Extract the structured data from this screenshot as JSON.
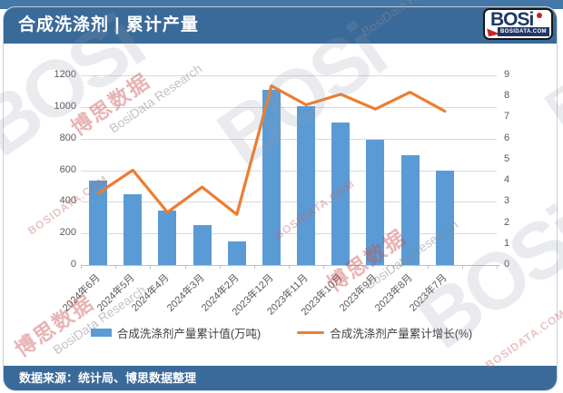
{
  "header": {
    "title": "合成洗涤剂 | 累计产量"
  },
  "logo": {
    "text": "BOSi",
    "domain": "BOSIDATA.COM"
  },
  "watermark": {
    "brand_cn": "博思数据",
    "brand_en": "BosiData Research",
    "logo_text": "BOSi",
    "logo_domain": "BOSIDATA.COM"
  },
  "footer": {
    "source": "数据来源：统计局、博思数据整理"
  },
  "colors": {
    "header_bg": "#3A6A99",
    "top_strip": "#4478A8",
    "bar": "#5B9BD5",
    "line": "#ED7D31",
    "grid": "#D9D9D9",
    "axis": "#BFBFBF",
    "tick_text": "#595959"
  },
  "chart_data": {
    "type": "bar",
    "subtype": "bar+line combo, dual y-axes",
    "categories": [
      "2024年6月",
      "2024年5月",
      "2024年4月",
      "2024年3月",
      "2024年2月",
      "2023年12月",
      "2023年11月",
      "2023年10月",
      "2023年9月",
      "2023年8月",
      "2023年7月"
    ],
    "series": [
      {
        "name": "合成洗涤剂产量累计值(万吨)",
        "type": "bar",
        "axis": "left",
        "color": "#5B9BD5",
        "values": [
          535,
          445,
          345,
          255,
          150,
          1110,
          1005,
          900,
          795,
          695,
          600
        ]
      },
      {
        "name": "合成洗涤剂产量累计增长(%)",
        "type": "line",
        "axis": "right",
        "color": "#ED7D31",
        "values": [
          3.4,
          4.5,
          2.5,
          3.7,
          2.4,
          8.5,
          7.6,
          8.1,
          7.4,
          8.2,
          7.3
        ]
      }
    ],
    "left_axis": {
      "min": 0,
      "max": 1200,
      "ticks": [
        0,
        200,
        400,
        600,
        800,
        1000,
        1200
      ]
    },
    "right_axis": {
      "min": 0,
      "max": 9,
      "ticks": [
        0,
        1,
        2,
        3,
        4,
        5,
        6,
        7,
        8,
        9
      ]
    },
    "grid": true,
    "legend_position": "bottom",
    "x_label_rotation": -45
  }
}
